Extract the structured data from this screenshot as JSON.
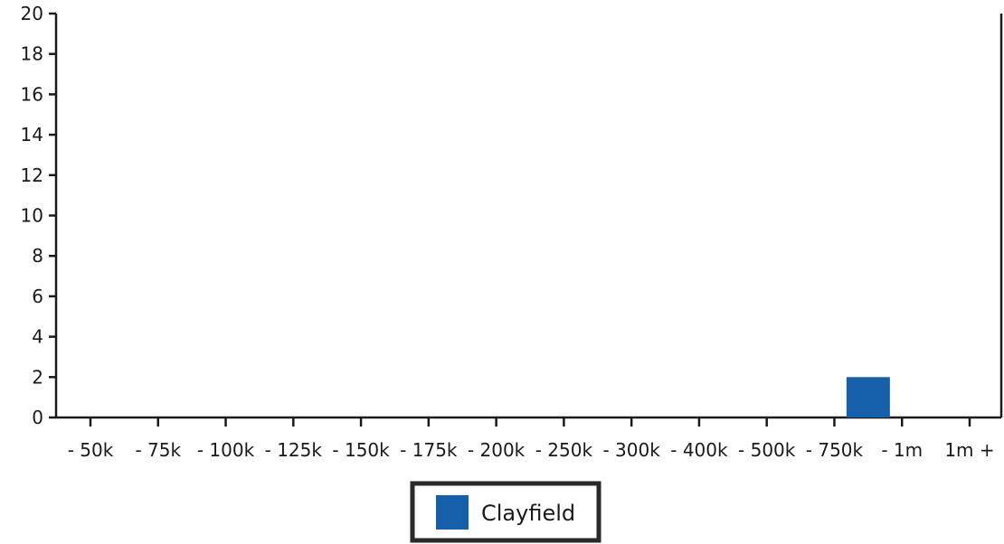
{
  "chart_data": {
    "type": "bar",
    "title": "",
    "xlabel": "",
    "ylabel": "",
    "categories": [
      "- 50k",
      "- 75k",
      "- 100k",
      "- 125k",
      "- 150k",
      "- 175k",
      "- 200k",
      "- 250k",
      "- 300k",
      "- 400k",
      "- 500k",
      "- 750k",
      "- 1m",
      "1m +"
    ],
    "series": [
      {
        "name": "Clayfield",
        "color": "#1560a8",
        "values": [
          0,
          0,
          0,
          0,
          0,
          0,
          0,
          0,
          0,
          0,
          0,
          2,
          0,
          0
        ]
      }
    ],
    "ylim": [
      0,
      20
    ],
    "yticks": [
      0,
      2,
      4,
      6,
      8,
      10,
      12,
      14,
      16,
      18,
      20
    ],
    "grid": false,
    "legend": {
      "position": "bottom-center",
      "items": [
        "Clayfield"
      ]
    }
  }
}
